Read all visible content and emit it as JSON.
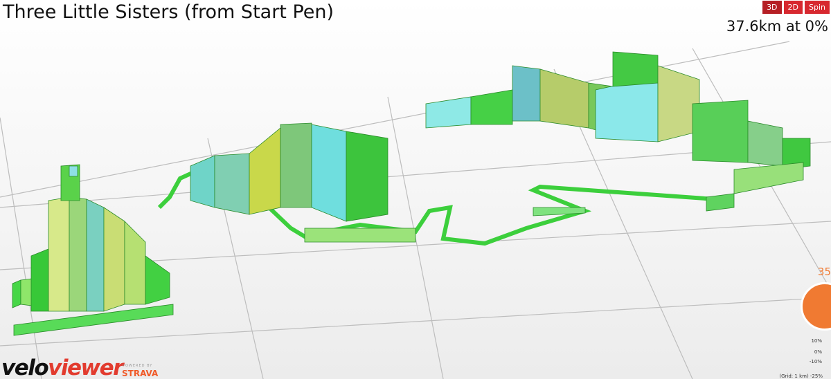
{
  "header": {
    "title": "Three Little Sisters (from Start Pen)",
    "status": "37.6km at 0%",
    "buttons": [
      "3D",
      "2D",
      "Spin"
    ]
  },
  "side_badge": "35",
  "legend": {
    "labels": [
      "10%",
      "0%",
      "-10%"
    ],
    "grid_note": "(Grid: 1 km) -25%"
  },
  "logo": {
    "velo": "velo",
    "viewer": "viewer",
    "powered_by": "POWERED BY",
    "partner": "STRAVA"
  }
}
